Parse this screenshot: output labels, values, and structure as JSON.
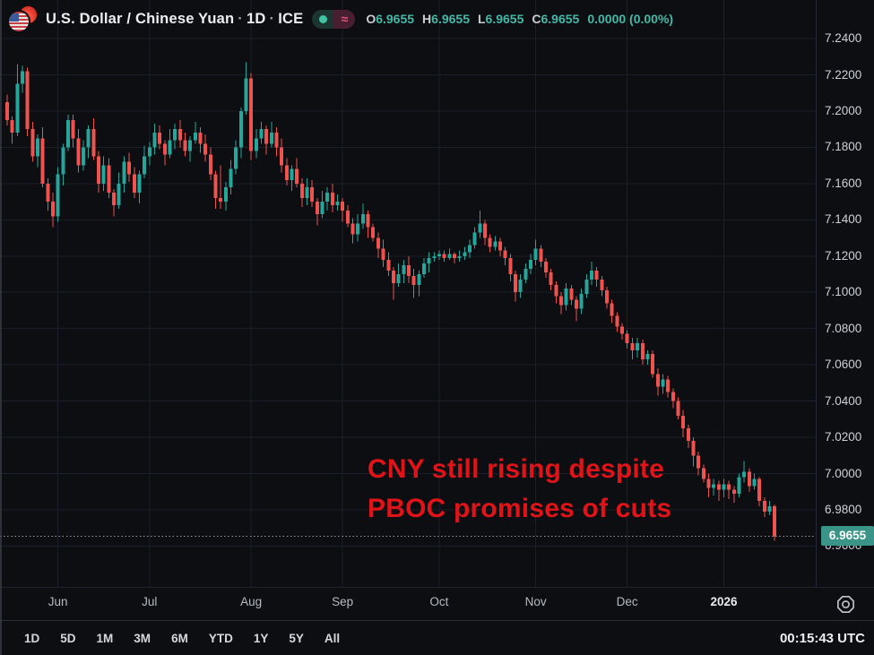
{
  "header": {
    "symbol": "U.S. Dollar / Chinese Yuan",
    "separator": "·",
    "interval": "1D",
    "exchange": "ICE",
    "status_pill": {
      "market_dot": "market-status-dot",
      "approx_symbol": "≈"
    },
    "ohlc_items": [
      {
        "label": "O",
        "value": "6.9655"
      },
      {
        "label": "H",
        "value": "6.9655"
      },
      {
        "label": "L",
        "value": "6.9655"
      },
      {
        "label": "C",
        "value": "6.9655"
      },
      {
        "label": "",
        "value": "0.0000 (0.00%)"
      }
    ]
  },
  "annotation": {
    "line1": "CNY still rising despite",
    "line2": "PBOC promises of cuts"
  },
  "price_axis": {
    "labels": [
      "7.2400",
      "7.2200",
      "7.2000",
      "7.1800",
      "7.1600",
      "7.1400",
      "7.1200",
      "7.1000",
      "7.0800",
      "7.0600",
      "7.0400",
      "7.0200",
      "7.0000",
      "6.9800",
      "6.9600"
    ],
    "badge_value": "6.9655"
  },
  "toolbar": {
    "ranges": [
      "1D",
      "5D",
      "1M",
      "3M",
      "6M",
      "YTD",
      "1Y",
      "5Y",
      "All"
    ],
    "clock": "00:15:43 UTC"
  },
  "colors": {
    "background": "#0c0e12",
    "badge_bg": "#3a9488",
    "annotation_red": "#e01418",
    "value_teal": "#45b8a6",
    "pill_left_bg": "#1d3530",
    "pill_right_bg": "#471f31",
    "pill_dot_green": "#40c4a6",
    "pill_approx_pink": "#ec5277"
  },
  "chart_data": {
    "type": "candlestick",
    "title": "U.S. Dollar / Chinese Yuan · 1D · ICE",
    "up_color": "#26a69a",
    "down_color": "#ef5350",
    "current_price": 6.9655,
    "price_grid_min": 6.96,
    "price_grid_max": 7.24,
    "price_grid_step": 0.02,
    "legend_position": "top-left",
    "grid": true,
    "months": [
      {
        "label": "Jun",
        "day_index": 10
      },
      {
        "label": "Jul",
        "day_index": 28
      },
      {
        "label": "Aug",
        "day_index": 48
      },
      {
        "label": "Sep",
        "day_index": 66
      },
      {
        "label": "Oct",
        "day_index": 85
      },
      {
        "label": "Nov",
        "day_index": 104
      },
      {
        "label": "Dec",
        "day_index": 122
      },
      {
        "label": "2026",
        "day_index": 141,
        "year": true
      }
    ],
    "candles": [
      [
        7.205,
        7.209,
        7.192,
        7.195
      ],
      [
        7.195,
        7.197,
        7.182,
        7.188
      ],
      [
        7.188,
        7.226,
        7.186,
        7.215
      ],
      [
        7.215,
        7.225,
        7.21,
        7.222
      ],
      [
        7.222,
        7.224,
        7.186,
        7.19
      ],
      [
        7.19,
        7.194,
        7.172,
        7.175
      ],
      [
        7.175,
        7.187,
        7.169,
        7.185
      ],
      [
        7.185,
        7.191,
        7.158,
        7.16
      ],
      [
        7.16,
        7.163,
        7.145,
        7.15
      ],
      [
        7.15,
        7.155,
        7.136,
        7.142
      ],
      [
        7.142,
        7.169,
        7.139,
        7.165
      ],
      [
        7.165,
        7.182,
        7.159,
        7.18
      ],
      [
        7.18,
        7.198,
        7.178,
        7.195
      ],
      [
        7.195,
        7.198,
        7.18,
        7.185
      ],
      [
        7.185,
        7.19,
        7.166,
        7.17
      ],
      [
        7.17,
        7.184,
        7.167,
        7.18
      ],
      [
        7.18,
        7.192,
        7.174,
        7.19
      ],
      [
        7.19,
        7.196,
        7.173,
        7.175
      ],
      [
        7.175,
        7.178,
        7.155,
        7.16
      ],
      [
        7.16,
        7.175,
        7.156,
        7.17
      ],
      [
        7.17,
        7.174,
        7.152,
        7.155
      ],
      [
        7.155,
        7.157,
        7.142,
        7.148
      ],
      [
        7.148,
        7.166,
        7.146,
        7.16
      ],
      [
        7.16,
        7.175,
        7.155,
        7.172
      ],
      [
        7.172,
        7.177,
        7.161,
        7.165
      ],
      [
        7.165,
        7.169,
        7.152,
        7.155
      ],
      [
        7.155,
        7.167,
        7.149,
        7.165
      ],
      [
        7.165,
        7.181,
        7.163,
        7.175
      ],
      [
        7.175,
        7.183,
        7.17,
        7.18
      ],
      [
        7.18,
        7.193,
        7.176,
        7.188
      ],
      [
        7.188,
        7.192,
        7.179,
        7.182
      ],
      [
        7.182,
        7.184,
        7.17,
        7.176
      ],
      [
        7.176,
        7.19,
        7.174,
        7.184
      ],
      [
        7.184,
        7.193,
        7.179,
        7.19
      ],
      [
        7.19,
        7.195,
        7.18,
        7.184
      ],
      [
        7.184,
        7.188,
        7.175,
        7.178
      ],
      [
        7.178,
        7.186,
        7.172,
        7.184
      ],
      [
        7.184,
        7.194,
        7.182,
        7.188
      ],
      [
        7.188,
        7.191,
        7.177,
        7.182
      ],
      [
        7.182,
        7.187,
        7.172,
        7.176
      ],
      [
        7.176,
        7.18,
        7.162,
        7.165
      ],
      [
        7.165,
        7.167,
        7.146,
        7.152
      ],
      [
        7.152,
        7.17,
        7.146,
        7.15
      ],
      [
        7.15,
        7.161,
        7.145,
        7.158
      ],
      [
        7.158,
        7.173,
        7.154,
        7.168
      ],
      [
        7.168,
        7.184,
        7.165,
        7.18
      ],
      [
        7.18,
        7.202,
        7.174,
        7.2
      ],
      [
        7.2,
        7.227,
        7.198,
        7.218
      ],
      [
        7.218,
        7.221,
        7.173,
        7.178
      ],
      [
        7.178,
        7.19,
        7.174,
        7.185
      ],
      [
        7.185,
        7.194,
        7.182,
        7.19
      ],
      [
        7.19,
        7.192,
        7.176,
        7.182
      ],
      [
        7.182,
        7.194,
        7.18,
        7.188
      ],
      [
        7.188,
        7.191,
        7.175,
        7.18
      ],
      [
        7.18,
        7.185,
        7.166,
        7.17
      ],
      [
        7.17,
        7.174,
        7.159,
        7.162
      ],
      [
        7.162,
        7.17,
        7.156,
        7.168
      ],
      [
        7.168,
        7.174,
        7.158,
        7.16
      ],
      [
        7.16,
        7.163,
        7.147,
        7.152
      ],
      [
        7.152,
        7.163,
        7.148,
        7.158
      ],
      [
        7.158,
        7.162,
        7.147,
        7.15
      ],
      [
        7.15,
        7.152,
        7.137,
        7.143
      ],
      [
        7.143,
        7.156,
        7.141,
        7.15
      ],
      [
        7.15,
        7.158,
        7.145,
        7.155
      ],
      [
        7.155,
        7.16,
        7.144,
        7.148
      ],
      [
        7.148,
        7.154,
        7.145,
        7.15
      ],
      [
        7.15,
        7.152,
        7.139,
        7.145
      ],
      [
        7.145,
        7.148,
        7.136,
        7.138
      ],
      [
        7.138,
        7.141,
        7.127,
        7.132
      ],
      [
        7.132,
        7.143,
        7.128,
        7.138
      ],
      [
        7.138,
        7.149,
        7.135,
        7.143
      ],
      [
        7.143,
        7.145,
        7.13,
        7.136
      ],
      [
        7.136,
        7.138,
        7.128,
        7.13
      ],
      [
        7.13,
        7.133,
        7.119,
        7.124
      ],
      [
        7.124,
        7.129,
        7.114,
        7.118
      ],
      [
        7.118,
        7.122,
        7.109,
        7.112
      ],
      [
        7.112,
        7.114,
        7.096,
        7.105
      ],
      [
        7.105,
        7.116,
        7.103,
        7.11
      ],
      [
        7.11,
        7.118,
        7.105,
        7.115
      ],
      [
        7.115,
        7.12,
        7.105,
        7.109
      ],
      [
        7.109,
        7.113,
        7.097,
        7.104
      ],
      [
        7.104,
        7.112,
        7.098,
        7.11
      ],
      [
        7.11,
        7.119,
        7.108,
        7.116
      ],
      [
        7.116,
        7.122,
        7.111,
        7.119
      ],
      [
        7.119,
        7.122,
        7.117,
        7.12
      ],
      [
        7.12,
        7.123,
        7.118,
        7.121
      ],
      [
        7.121,
        7.123,
        7.117,
        7.119
      ],
      [
        7.119,
        7.124,
        7.118,
        7.121
      ],
      [
        7.121,
        7.122,
        7.116,
        7.119
      ],
      [
        7.119,
        7.123,
        7.117,
        7.12
      ],
      [
        7.12,
        7.125,
        7.118,
        7.122
      ],
      [
        7.122,
        7.129,
        7.119,
        7.126
      ],
      [
        7.126,
        7.136,
        7.124,
        7.133
      ],
      [
        7.133,
        7.145,
        7.13,
        7.138
      ],
      [
        7.138,
        7.14,
        7.126,
        7.13
      ],
      [
        7.13,
        7.132,
        7.122,
        7.125
      ],
      [
        7.125,
        7.131,
        7.123,
        7.128
      ],
      [
        7.128,
        7.13,
        7.12,
        7.123
      ],
      [
        7.123,
        7.125,
        7.115,
        7.119
      ],
      [
        7.119,
        7.121,
        7.106,
        7.11
      ],
      [
        7.11,
        7.112,
        7.095,
        7.1
      ],
      [
        7.1,
        7.11,
        7.097,
        7.107
      ],
      [
        7.107,
        7.116,
        7.105,
        7.113
      ],
      [
        7.113,
        7.121,
        7.11,
        7.118
      ],
      [
        7.118,
        7.129,
        7.115,
        7.124
      ],
      [
        7.124,
        7.126,
        7.114,
        7.117
      ],
      [
        7.117,
        7.119,
        7.108,
        7.111
      ],
      [
        7.111,
        7.113,
        7.101,
        7.104
      ],
      [
        7.104,
        7.106,
        7.094,
        7.098
      ],
      [
        7.098,
        7.1,
        7.088,
        7.093
      ],
      [
        7.093,
        7.105,
        7.09,
        7.102
      ],
      [
        7.102,
        7.104,
        7.093,
        7.096
      ],
      [
        7.096,
        7.098,
        7.084,
        7.091
      ],
      [
        7.091,
        7.102,
        7.088,
        7.099
      ],
      [
        7.099,
        7.11,
        7.097,
        7.107
      ],
      [
        7.107,
        7.117,
        7.104,
        7.112
      ],
      [
        7.112,
        7.114,
        7.103,
        7.107
      ],
      [
        7.107,
        7.109,
        7.098,
        7.101
      ],
      [
        7.101,
        7.103,
        7.091,
        7.094
      ],
      [
        7.094,
        7.096,
        7.083,
        7.087
      ],
      [
        7.087,
        7.089,
        7.078,
        7.081
      ],
      [
        7.081,
        7.083,
        7.074,
        7.077
      ],
      [
        7.077,
        7.079,
        7.069,
        7.072
      ],
      [
        7.072,
        7.075,
        7.063,
        7.068
      ],
      [
        7.068,
        7.075,
        7.064,
        7.072
      ],
      [
        7.072,
        7.074,
        7.06,
        7.063
      ],
      [
        7.063,
        7.068,
        7.06,
        7.066
      ],
      [
        7.066,
        7.068,
        7.053,
        7.055
      ],
      [
        7.055,
        7.058,
        7.043,
        7.048
      ],
      [
        7.048,
        7.055,
        7.044,
        7.052
      ],
      [
        7.052,
        7.054,
        7.042,
        7.045
      ],
      [
        7.045,
        7.047,
        7.036,
        7.04
      ],
      [
        7.04,
        7.042,
        7.03,
        7.032
      ],
      [
        7.032,
        7.035,
        7.02,
        7.025
      ],
      [
        7.025,
        7.027,
        7.014,
        7.018
      ],
      [
        7.018,
        7.02,
        7.004,
        7.01
      ],
      [
        7.01,
        7.012,
        6.999,
        7.003
      ],
      [
        7.003,
        7.005,
        6.995,
        6.997
      ],
      [
        6.997,
        7.0,
        6.987,
        6.992
      ],
      [
        6.992,
        6.997,
        6.988,
        6.994
      ],
      [
        6.994,
        6.996,
        6.985,
        6.991
      ],
      [
        6.991,
        6.997,
        6.987,
        6.994
      ],
      [
        6.994,
        6.996,
        6.986,
        6.991
      ],
      [
        6.991,
        6.993,
        6.984,
        6.989
      ],
      [
        6.989,
        7.0,
        6.987,
        6.998
      ],
      [
        6.998,
        7.007,
        6.995,
        7.001
      ],
      [
        7.001,
        7.003,
        6.99,
        6.993
      ],
      [
        6.993,
        7.0,
        6.991,
        6.997
      ],
      [
        6.997,
        6.998,
        6.982,
        6.985
      ],
      [
        6.985,
        6.987,
        6.976,
        6.979
      ],
      [
        6.979,
        6.985,
        6.977,
        6.982
      ],
      [
        6.982,
        6.983,
        6.963,
        6.9655
      ]
    ]
  }
}
